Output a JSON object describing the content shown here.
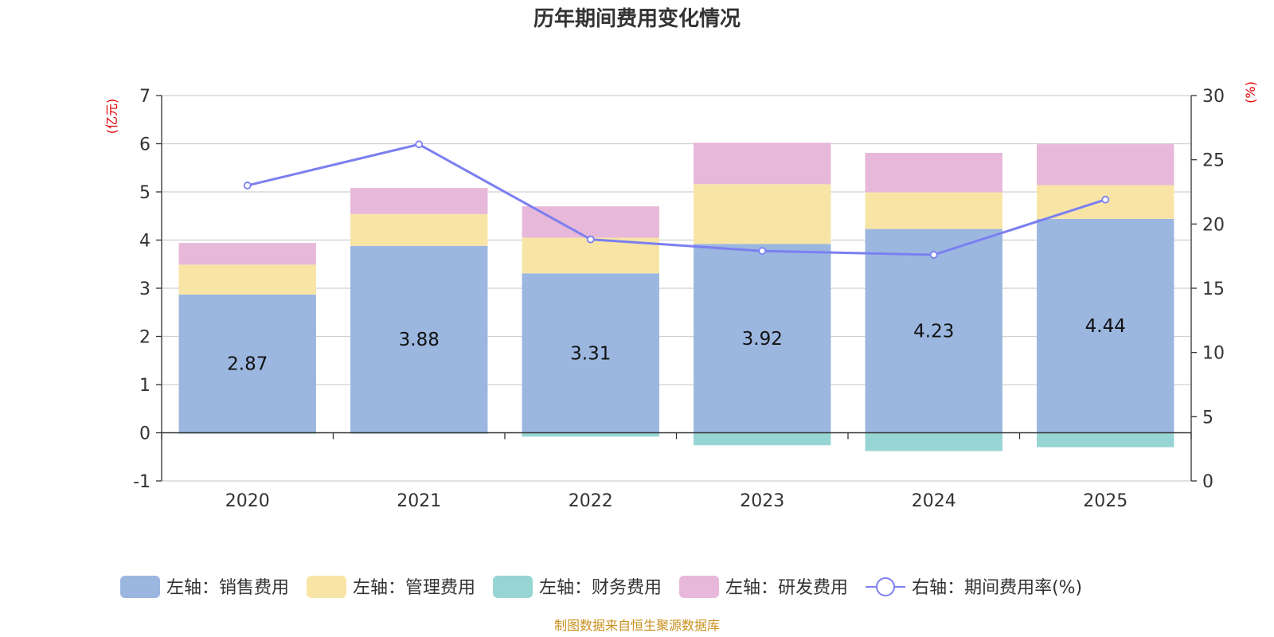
{
  "chart_data": {
    "type": "bar",
    "title": "历年期间费用变化情况",
    "categories": [
      "2020",
      "2021",
      "2022",
      "2023",
      "2024",
      "2025"
    ],
    "left_axis": {
      "unit": "(亿元)",
      "min": -1,
      "max": 7,
      "ticks": [
        -1,
        0,
        1,
        2,
        3,
        4,
        5,
        6,
        7
      ]
    },
    "right_axis": {
      "unit": "(%)",
      "min": 0,
      "max": 30,
      "ticks": [
        0,
        5,
        10,
        15,
        20,
        25,
        30
      ]
    },
    "series": [
      {
        "name": "左轴：销售费用",
        "kind": "bar",
        "color": "#9bb7e0",
        "values": [
          2.87,
          3.88,
          3.31,
          3.92,
          4.23,
          4.44
        ]
      },
      {
        "name": "左轴：管理费用",
        "kind": "bar",
        "color": "#f8e5a6",
        "values": [
          0.62,
          0.66,
          0.74,
          1.24,
          0.76,
          0.7
        ]
      },
      {
        "name": "左轴：财务费用",
        "kind": "bar",
        "color": "#97d4d4",
        "values": [
          -0.02,
          -0.02,
          -0.08,
          -0.26,
          -0.38,
          -0.3
        ]
      },
      {
        "name": "左轴：研发费用",
        "kind": "bar",
        "color": "#e7b8d9",
        "values": [
          0.45,
          0.54,
          0.65,
          0.86,
          0.82,
          0.85
        ]
      },
      {
        "name": "右轴：期间费用率(%)",
        "kind": "line",
        "color": "#7b7ff0",
        "values": [
          23.0,
          26.2,
          18.8,
          17.9,
          17.6,
          21.9
        ]
      }
    ],
    "data_labels": [
      "2.87",
      "3.88",
      "3.31",
      "3.92",
      "4.23",
      "4.44"
    ]
  },
  "source": "制图数据来自恒生聚源数据库"
}
